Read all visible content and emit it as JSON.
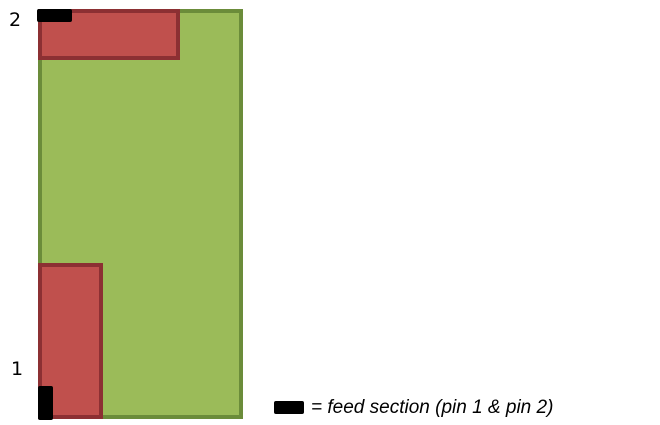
{
  "diagram": {
    "labels": {
      "pin_top": "2",
      "pin_bottom": "1"
    },
    "legend": {
      "text": "= feed section (pin 1 & pin 2)"
    },
    "colors": {
      "board_fill": "#9bbb59",
      "board_border": "#6b8c3a",
      "patch_fill": "#c0504d",
      "patch_border": "#8c3033",
      "feed_fill": "#000000"
    }
  }
}
